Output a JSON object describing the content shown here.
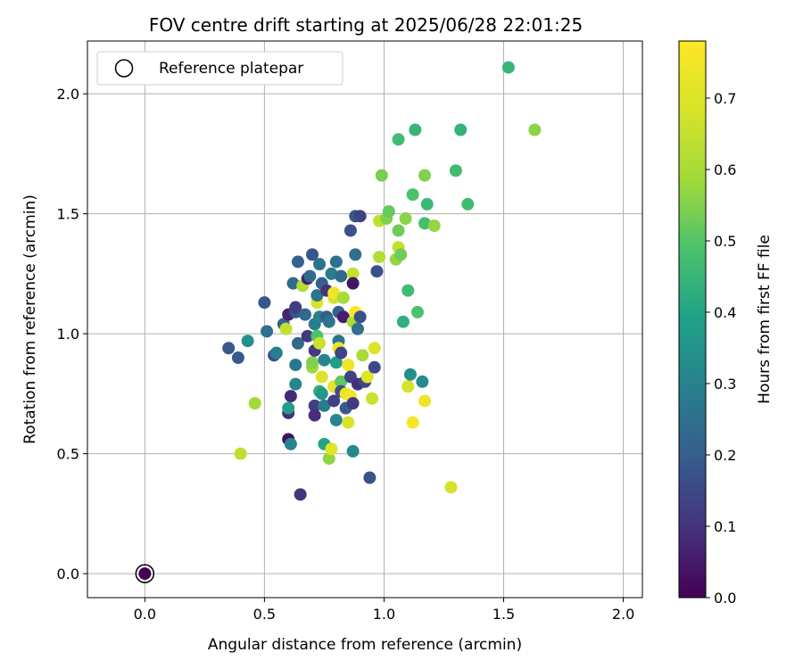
{
  "chart_data": {
    "type": "scatter",
    "title": "FOV centre drift starting at 2025/06/28 22:01:25",
    "xlabel": "Angular distance from reference (arcmin)",
    "ylabel": "Rotation from reference (arcmin)",
    "xlim": [
      -0.24,
      2.08
    ],
    "ylim": [
      -0.1,
      2.22
    ],
    "x_ticks": [
      "0.0",
      "0.5",
      "1.0",
      "1.5",
      "2.0"
    ],
    "y_ticks": [
      "0.0",
      "0.5",
      "1.0",
      "1.5",
      "2.0"
    ],
    "grid": true,
    "legend": {
      "position": "top-left",
      "entries": [
        "Reference platepar"
      ]
    },
    "reference_point": {
      "x": 0.0,
      "y": 0.0,
      "label": "Reference platepar"
    },
    "colorbar": {
      "label": "Hours from first FF file",
      "colormap": "viridis",
      "range": [
        0.0,
        0.78
      ],
      "ticks": [
        "0.0",
        "0.1",
        "0.2",
        "0.3",
        "0.4",
        "0.5",
        "0.6",
        "0.7"
      ]
    },
    "points": [
      [
        0.0,
        0.0,
        0.0
      ],
      [
        0.35,
        0.94,
        0.19
      ],
      [
        0.39,
        0.9,
        0.19
      ],
      [
        0.43,
        0.97,
        0.34
      ],
      [
        0.46,
        0.71,
        0.59
      ],
      [
        0.4,
        0.5,
        0.64
      ],
      [
        0.5,
        1.13,
        0.18
      ],
      [
        0.51,
        1.01,
        0.25
      ],
      [
        0.54,
        0.91,
        0.16
      ],
      [
        0.55,
        0.92,
        0.29
      ],
      [
        0.58,
        1.04,
        0.22
      ],
      [
        0.59,
        1.02,
        0.65
      ],
      [
        0.6,
        1.08,
        0.07
      ],
      [
        0.61,
        0.74,
        0.08
      ],
      [
        0.6,
        0.67,
        0.09
      ],
      [
        0.6,
        0.56,
        0.03
      ],
      [
        0.61,
        0.54,
        0.31
      ],
      [
        0.6,
        0.69,
        0.38
      ],
      [
        0.62,
        1.21,
        0.24
      ],
      [
        0.63,
        1.09,
        0.18
      ],
      [
        0.63,
        0.87,
        0.27
      ],
      [
        0.63,
        0.79,
        0.31
      ],
      [
        0.64,
        1.3,
        0.21
      ],
      [
        0.64,
        0.96,
        0.23
      ],
      [
        0.63,
        1.11,
        0.12
      ],
      [
        0.66,
        1.2,
        0.62
      ],
      [
        0.65,
        0.33,
        0.1
      ],
      [
        0.67,
        1.08,
        0.23
      ],
      [
        0.68,
        1.23,
        0.06
      ],
      [
        0.68,
        0.99,
        0.11
      ],
      [
        0.69,
        1.24,
        0.23
      ],
      [
        0.7,
        1.33,
        0.18
      ],
      [
        0.7,
        0.86,
        0.58
      ],
      [
        0.7,
        0.88,
        0.55
      ],
      [
        0.71,
        0.7,
        0.13
      ],
      [
        0.71,
        0.66,
        0.09
      ],
      [
        0.71,
        1.04,
        0.29
      ],
      [
        0.71,
        0.93,
        0.12
      ],
      [
        0.72,
        1.13,
        0.69
      ],
      [
        0.72,
        1.16,
        0.26
      ],
      [
        0.73,
        1.29,
        0.26
      ],
      [
        0.72,
        0.99,
        0.49
      ],
      [
        0.73,
        0.96,
        0.66
      ],
      [
        0.73,
        1.07,
        0.3
      ],
      [
        0.73,
        0.76,
        0.43
      ],
      [
        0.74,
        1.21,
        0.21
      ],
      [
        0.74,
        0.82,
        0.7
      ],
      [
        0.74,
        0.75,
        0.36
      ],
      [
        0.75,
        0.7,
        0.29
      ],
      [
        0.75,
        0.54,
        0.4
      ],
      [
        0.75,
        0.89,
        0.31
      ],
      [
        0.76,
        1.07,
        0.2
      ],
      [
        0.76,
        1.18,
        0.1
      ],
      [
        0.77,
        1.05,
        0.26
      ],
      [
        0.77,
        0.48,
        0.57
      ],
      [
        0.78,
        0.52,
        0.71
      ],
      [
        0.78,
        1.25,
        0.28
      ],
      [
        0.79,
        1.15,
        0.68
      ],
      [
        0.79,
        1.17,
        0.74
      ],
      [
        0.79,
        0.78,
        0.71
      ],
      [
        0.79,
        0.72,
        0.13
      ],
      [
        0.8,
        1.3,
        0.25
      ],
      [
        0.8,
        0.64,
        0.31
      ],
      [
        0.8,
        0.88,
        0.38
      ],
      [
        0.81,
        0.97,
        0.26
      ],
      [
        0.81,
        0.94,
        0.73
      ],
      [
        0.81,
        1.09,
        0.21
      ],
      [
        0.82,
        1.24,
        0.23
      ],
      [
        0.82,
        0.8,
        0.51
      ],
      [
        0.82,
        0.76,
        0.16
      ],
      [
        0.82,
        0.92,
        0.14
      ],
      [
        0.83,
        1.07,
        0.06
      ],
      [
        0.83,
        1.15,
        0.6
      ],
      [
        0.84,
        0.75,
        0.73
      ],
      [
        0.84,
        0.69,
        0.19
      ],
      [
        0.85,
        0.87,
        0.74
      ],
      [
        0.85,
        0.63,
        0.69
      ],
      [
        0.86,
        0.82,
        0.13
      ],
      [
        0.86,
        0.74,
        0.75
      ],
      [
        0.86,
        1.43,
        0.17
      ],
      [
        0.87,
        1.05,
        0.61
      ],
      [
        0.87,
        1.25,
        0.65
      ],
      [
        0.87,
        0.51,
        0.32
      ],
      [
        0.87,
        1.21,
        0.04
      ],
      [
        0.87,
        0.71,
        0.11
      ],
      [
        0.88,
        1.33,
        0.25
      ],
      [
        0.88,
        1.09,
        0.77
      ],
      [
        0.88,
        1.49,
        0.18
      ],
      [
        0.89,
        0.79,
        0.09
      ],
      [
        0.89,
        1.02,
        0.25
      ],
      [
        0.9,
        1.49,
        0.13
      ],
      [
        0.9,
        1.07,
        0.17
      ],
      [
        0.91,
        0.91,
        0.6
      ],
      [
        0.92,
        0.8,
        0.14
      ],
      [
        0.93,
        0.82,
        0.7
      ],
      [
        0.94,
        0.4,
        0.17
      ],
      [
        0.95,
        0.73,
        0.66
      ],
      [
        0.96,
        0.86,
        0.15
      ],
      [
        0.96,
        0.94,
        0.7
      ],
      [
        0.97,
        1.26,
        0.17
      ],
      [
        0.98,
        1.32,
        0.62
      ],
      [
        0.98,
        1.47,
        0.64
      ],
      [
        0.99,
        1.66,
        0.54
      ],
      [
        1.01,
        1.48,
        0.55
      ],
      [
        1.02,
        1.51,
        0.52
      ],
      [
        1.05,
        1.31,
        0.57
      ],
      [
        1.06,
        1.81,
        0.47
      ],
      [
        1.06,
        1.36,
        0.65
      ],
      [
        1.06,
        1.43,
        0.53
      ],
      [
        1.07,
        1.33,
        0.53
      ],
      [
        1.08,
        1.05,
        0.43
      ],
      [
        1.09,
        1.48,
        0.56
      ],
      [
        1.1,
        1.18,
        0.47
      ],
      [
        1.1,
        0.78,
        0.68
      ],
      [
        1.11,
        0.83,
        0.34
      ],
      [
        1.12,
        1.58,
        0.49
      ],
      [
        1.12,
        0.63,
        0.76
      ],
      [
        1.13,
        1.85,
        0.45
      ],
      [
        1.14,
        1.09,
        0.49
      ],
      [
        1.16,
        0.8,
        0.33
      ],
      [
        1.17,
        1.46,
        0.48
      ],
      [
        1.17,
        1.66,
        0.55
      ],
      [
        1.17,
        0.72,
        0.74
      ],
      [
        1.18,
        1.54,
        0.46
      ],
      [
        1.21,
        1.45,
        0.57
      ],
      [
        1.28,
        0.36,
        0.68
      ],
      [
        1.3,
        1.68,
        0.47
      ],
      [
        1.32,
        1.85,
        0.44
      ],
      [
        1.35,
        1.54,
        0.47
      ],
      [
        1.52,
        2.11,
        0.45
      ],
      [
        1.63,
        1.85,
        0.56
      ]
    ]
  }
}
